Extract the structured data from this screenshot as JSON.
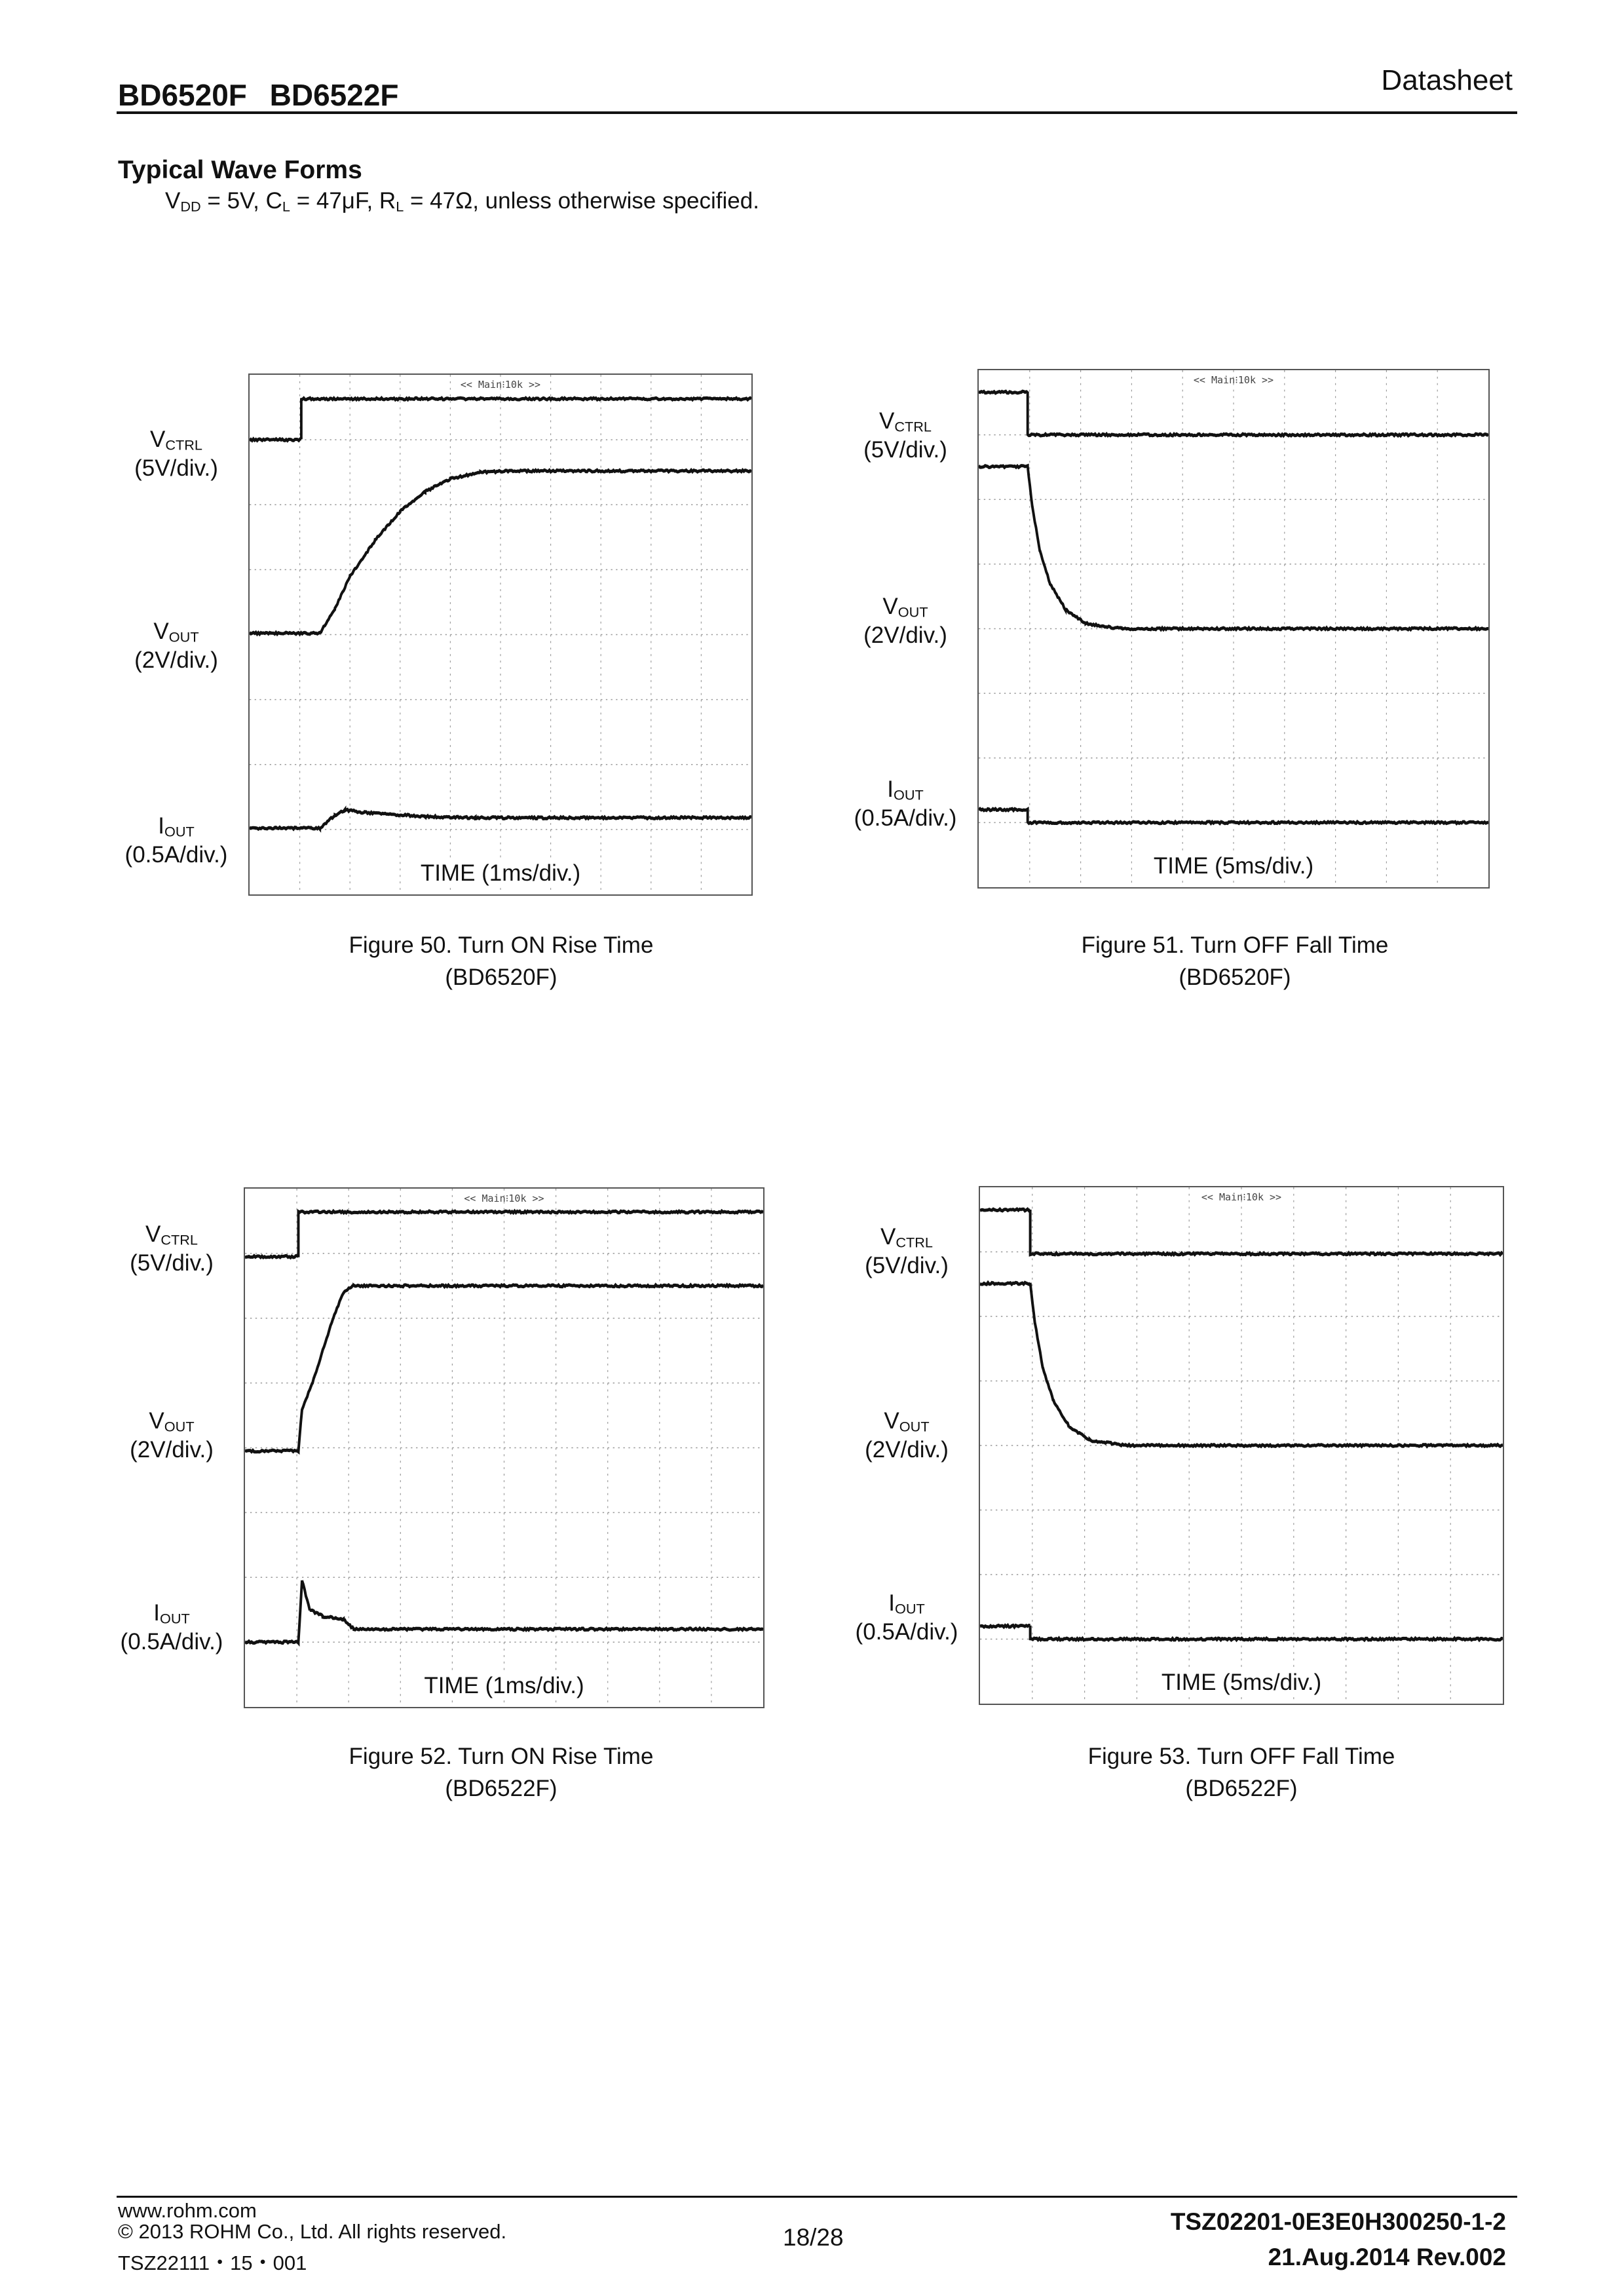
{
  "header": {
    "title": "BD6520F BD6522F",
    "doc_type": "Datasheet"
  },
  "section": {
    "title": "Typical Wave Forms",
    "conditions": "VDD = 5V, CL = 47μF, RL = 47Ω, unless otherwise specified."
  },
  "scope_label": "<< Main⁝10k >>",
  "chart_data": [
    {
      "type": "line",
      "figure": "Figure 50. Turn ON Rise Time",
      "part": "(BD6520F)",
      "xlabel": "TIME (1ms/div.)",
      "grid": {
        "x_divs": 10,
        "y_divs": 8
      },
      "channels": [
        {
          "name": "VCTRL",
          "scale": "(5V/div.)"
        },
        {
          "name": "VOUT",
          "scale": "(2V/div.)"
        },
        {
          "name": "IOUT",
          "scale": "(0.5A/div.)"
        }
      ],
      "series": [
        {
          "name": "VCTRL",
          "points": [
            [
              0,
              1.0
            ],
            [
              1.03,
              1.0
            ],
            [
              1.03,
              0.37
            ],
            [
              10,
              0.37
            ]
          ]
        },
        {
          "name": "VOUT",
          "points": [
            [
              0,
              3.98
            ],
            [
              1.4,
              3.98
            ],
            [
              1.7,
              3.6
            ],
            [
              2.0,
              3.1
            ],
            [
              2.5,
              2.55
            ],
            [
              3.0,
              2.1
            ],
            [
              3.5,
              1.8
            ],
            [
              4.0,
              1.6
            ],
            [
              4.6,
              1.5
            ],
            [
              5.2,
              1.48
            ],
            [
              10,
              1.48
            ]
          ]
        },
        {
          "name": "IOUT",
          "points": [
            [
              0,
              6.98
            ],
            [
              1.4,
              6.98
            ],
            [
              1.7,
              6.78
            ],
            [
              1.9,
              6.7
            ],
            [
              2.3,
              6.74
            ],
            [
              3.5,
              6.8
            ],
            [
              4.5,
              6.82
            ],
            [
              10,
              6.82
            ]
          ]
        }
      ]
    },
    {
      "type": "line",
      "figure": "Figure 51. Turn OFF Fall Time",
      "part": "(BD6520F)",
      "xlabel": "TIME (5ms/div.)",
      "grid": {
        "x_divs": 10,
        "y_divs": 8
      },
      "channels": [
        {
          "name": "VCTRL",
          "scale": "(5V/div.)"
        },
        {
          "name": "VOUT",
          "scale": "(2V/div.)"
        },
        {
          "name": "IOUT",
          "scale": "(0.5A/div.)"
        }
      ],
      "series": [
        {
          "name": "VCTRL",
          "points": [
            [
              0,
              0.34
            ],
            [
              0.96,
              0.34
            ],
            [
              0.96,
              1.0
            ],
            [
              10,
              1.0
            ]
          ]
        },
        {
          "name": "VOUT",
          "points": [
            [
              0,
              1.49
            ],
            [
              0.96,
              1.49
            ],
            [
              1.05,
              2.1
            ],
            [
              1.2,
              2.8
            ],
            [
              1.4,
              3.3
            ],
            [
              1.7,
              3.7
            ],
            [
              2.1,
              3.92
            ],
            [
              2.8,
              4.0
            ],
            [
              10,
              4.0
            ]
          ]
        },
        {
          "name": "IOUT",
          "points": [
            [
              0,
              6.8
            ],
            [
              0.96,
              6.8
            ],
            [
              0.96,
              7.0
            ],
            [
              10,
              7.0
            ]
          ]
        }
      ]
    },
    {
      "type": "line",
      "figure": "Figure 52. Turn ON Rise Time",
      "part": "(BD6522F)",
      "xlabel": "TIME (1ms/div.)",
      "grid": {
        "x_divs": 10,
        "y_divs": 8
      },
      "channels": [
        {
          "name": "VCTRL",
          "scale": "(5V/div.)"
        },
        {
          "name": "VOUT",
          "scale": "(2V/div.)"
        },
        {
          "name": "IOUT",
          "scale": "(0.5A/div.)"
        }
      ],
      "series": [
        {
          "name": "VCTRL",
          "points": [
            [
              0,
              1.05
            ],
            [
              1.03,
              1.05
            ],
            [
              1.03,
              0.36
            ],
            [
              10,
              0.36
            ]
          ]
        },
        {
          "name": "VOUT",
          "points": [
            [
              0,
              4.05
            ],
            [
              1.03,
              4.05
            ],
            [
              1.1,
              3.4
            ],
            [
              1.3,
              3.0
            ],
            [
              1.5,
              2.5
            ],
            [
              1.7,
              2.0
            ],
            [
              1.9,
              1.6
            ],
            [
              2.1,
              1.5
            ],
            [
              10,
              1.5
            ]
          ]
        },
        {
          "name": "IOUT",
          "points": [
            [
              0,
              7.0
            ],
            [
              1.03,
              7.0
            ],
            [
              1.1,
              6.05
            ],
            [
              1.25,
              6.5
            ],
            [
              1.5,
              6.6
            ],
            [
              1.9,
              6.65
            ],
            [
              2.1,
              6.8
            ],
            [
              10,
              6.8
            ]
          ]
        }
      ]
    },
    {
      "type": "line",
      "figure": "Figure 53. Turn OFF Fall Time",
      "part": "(BD6522F)",
      "xlabel": "TIME (5ms/div.)",
      "grid": {
        "x_divs": 10,
        "y_divs": 8
      },
      "channels": [
        {
          "name": "VCTRL",
          "scale": "(5V/div.)"
        },
        {
          "name": "VOUT",
          "scale": "(2V/div.)"
        },
        {
          "name": "IOUT",
          "scale": "(0.5A/div.)"
        }
      ],
      "series": [
        {
          "name": "VCTRL",
          "points": [
            [
              0,
              0.35
            ],
            [
              0.96,
              0.35
            ],
            [
              0.96,
              1.03
            ],
            [
              10,
              1.03
            ]
          ]
        },
        {
          "name": "VOUT",
          "points": [
            [
              0,
              1.49
            ],
            [
              0.96,
              1.49
            ],
            [
              1.05,
              2.1
            ],
            [
              1.2,
              2.8
            ],
            [
              1.4,
              3.3
            ],
            [
              1.7,
              3.7
            ],
            [
              2.1,
              3.92
            ],
            [
              2.8,
              4.0
            ],
            [
              10,
              4.0
            ]
          ]
        },
        {
          "name": "IOUT",
          "points": [
            [
              0,
              6.8
            ],
            [
              0.96,
              6.8
            ],
            [
              0.96,
              7.0
            ],
            [
              10,
              7.0
            ]
          ]
        }
      ]
    }
  ],
  "footer": {
    "website": "www.rohm.com",
    "copyright": "© 2013 ROHM Co., Ltd. All rights reserved.",
    "form_code": "TSZ22111・15・001",
    "page": "18/28",
    "doc_number": "TSZ02201-0E3E0H300250-1-2",
    "date_rev": "21.Aug.2014 Rev.002"
  }
}
